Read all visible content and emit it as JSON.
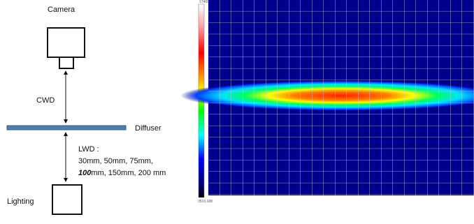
{
  "labels": {
    "camera": "Camera",
    "cwd": "CWD",
    "diffuser": "Diffuser",
    "lwd_title": "LWD :",
    "lwd_line1": "30mm, 50mm, 75mm,",
    "lwd_bold": "100",
    "lwd_line2_rest": "mm, 150mm, 200 mm",
    "lighting": "Lighting"
  },
  "colorbar": {
    "max_label": "17400.000",
    "min_label": "3510.188"
  }
}
